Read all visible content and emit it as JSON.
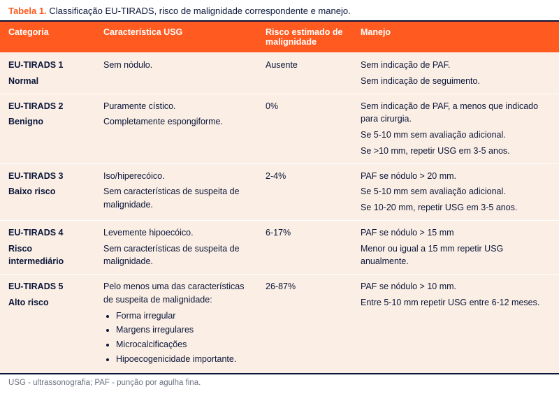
{
  "colors": {
    "header_bg": "#ff5a1f",
    "header_text": "#ffffff",
    "row_bg": "#fbeee4",
    "body_text": "#0a163a",
    "rule": "#0a163a",
    "row_divider": "#ffffff",
    "footnote_text": "#6b7280",
    "caption_label": "#ff5a1f"
  },
  "fonts": {
    "header_size_pt": 12.5,
    "body_size_pt": 12.5,
    "caption_size_pt": 13,
    "footnote_size_pt": 11.5
  },
  "caption": {
    "label": "Tabela 1.",
    "text": "Classificação EU-TIRADS, risco de malignidade correspondente e manejo."
  },
  "table": {
    "type": "table",
    "column_widths_pct": [
      17,
      29,
      17,
      37
    ],
    "columns": [
      "Categoria",
      "Característica USG",
      "Risco estimado de malignidade",
      "Manejo"
    ],
    "rows": [
      {
        "cat_code": "EU-TIRADS 1",
        "cat_label": "Normal",
        "usg": [
          "Sem nódulo."
        ],
        "risk": "Ausente",
        "mgmt": [
          "Sem indicação de PAF.",
          "Sem indicação de seguimento."
        ]
      },
      {
        "cat_code": "EU-TIRADS 2",
        "cat_label": "Benigno",
        "usg": [
          "Puramente cístico.",
          "Completamente espongiforme."
        ],
        "risk": "0%",
        "mgmt": [
          "Sem indicação de PAF, a menos que indicado para cirurgia.",
          "Se 5-10 mm sem avaliação adicional.",
          "Se >10 mm, repetir USG em 3-5 anos."
        ]
      },
      {
        "cat_code": "EU-TIRADS 3",
        "cat_label": "Baixo risco",
        "usg": [
          "Iso/hiperecóico.",
          "Sem características de suspeita de malignidade."
        ],
        "risk": "2-4%",
        "mgmt": [
          "PAF se nódulo > 20 mm.",
          "Se 5-10 mm sem avaliação adicional.",
          "Se 10-20 mm, repetir USG em 3-5 anos."
        ]
      },
      {
        "cat_code": "EU-TIRADS 4",
        "cat_label": "Risco intermediário",
        "usg": [
          "Levemente hipoecóico.",
          "Sem características de suspeita de malignidade."
        ],
        "risk": "6-17%",
        "mgmt": [
          "PAF se nódulo > 15 mm",
          "Menor ou igual a 15 mm repetir USG anualmente."
        ]
      },
      {
        "cat_code": "EU-TIRADS 5",
        "cat_label": "Alto risco",
        "usg_lead": "Pelo menos uma das características de suspeita de malignidade:",
        "usg_bullets": [
          "Forma irregular",
          "Margens irregulares",
          "Microcalcificações",
          "Hipoecogenicidade importante."
        ],
        "risk": "26-87%",
        "mgmt": [
          "PAF se nódulo > 10 mm.",
          "Entre 5-10 mm repetir USG entre 6-12 meses."
        ]
      }
    ]
  },
  "footnote": "USG - ultrassonografia; PAF - punção por agulha fina."
}
